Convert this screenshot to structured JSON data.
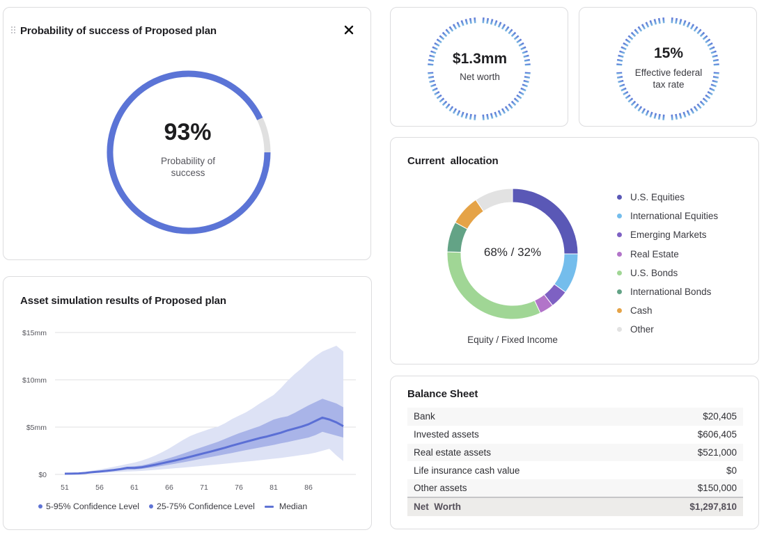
{
  "probability_card": {
    "title": "Probability of success of Proposed plan",
    "value": "93%",
    "caption": "Probability of success",
    "percent": 93,
    "color_fill": "#5b74d6",
    "color_track": "#e0e0e0",
    "drag_icon": "drag-handle-icon",
    "close_icon": "close-icon"
  },
  "stats": {
    "net_worth": {
      "value": "$1.3mm",
      "label": "Net worth"
    },
    "tax_rate": {
      "value": "15%",
      "label": "Effective federal tax rate"
    },
    "ring_colors": {
      "top": "#5b74d6",
      "bottom": "#7cbde3"
    }
  },
  "allocation": {
    "title": "Current  allocation",
    "center_text": "68% / 32%",
    "subtitle": "Equity / Fixed Income",
    "legend": [
      {
        "label": "U.S. Equities",
        "color": "#5a58b6"
      },
      {
        "label": "International Equities",
        "color": "#74bdec"
      },
      {
        "label": "Emerging Markets",
        "color": "#7e61c3"
      },
      {
        "label": "Real Estate",
        "color": "#b274c9"
      },
      {
        "label": "U.S. Bonds",
        "color": "#a0d695"
      },
      {
        "label": "International Bonds",
        "color": "#63a386"
      },
      {
        "label": "Cash",
        "color": "#e5a347"
      },
      {
        "label": "Other",
        "color": "#e2e2e2"
      }
    ]
  },
  "balance_sheet": {
    "title": "Balance Sheet",
    "rows": [
      {
        "label": "Bank",
        "amount": "$20,405"
      },
      {
        "label": "Invested assets",
        "amount": "$606,405"
      },
      {
        "label": "Real estate assets",
        "amount": "$521,000"
      },
      {
        "label": "Life insurance cash value",
        "amount": "$0"
      },
      {
        "label": "Other assets",
        "amount": "$150,000"
      }
    ],
    "total": {
      "label": "Net  Worth",
      "amount": "$1,297,810"
    }
  },
  "simulation": {
    "title": "Asset simulation results of Proposed plan",
    "legend": {
      "band_outer": "5-95% Confidence Level",
      "band_inner": "25-75% Confidence Level",
      "median": "Median"
    }
  },
  "chart_data": [
    {
      "type": "pie",
      "title": "Current  allocation",
      "center_label": "68% / 32%",
      "subtitle": "Equity / Fixed Income",
      "categories": [
        "U.S. Equities",
        "International Equities",
        "Emerging Markets",
        "Real Estate",
        "U.S. Bonds",
        "International Bonds",
        "Cash",
        "Other"
      ],
      "values": [
        25,
        10,
        4.5,
        3.5,
        32.5,
        7.5,
        7.5,
        9.5
      ],
      "colors": [
        "#5a58b6",
        "#74bdec",
        "#7e61c3",
        "#b274c9",
        "#a0d695",
        "#63a386",
        "#e5a347",
        "#e2e2e2"
      ],
      "legend": "right"
    },
    {
      "type": "area",
      "title": "Asset simulation results of Proposed plan",
      "xlabel": "",
      "ylabel": "",
      "x": [
        51,
        52,
        53,
        54,
        55,
        56,
        57,
        58,
        59,
        60,
        61,
        62,
        63,
        64,
        65,
        66,
        67,
        68,
        69,
        70,
        71,
        72,
        73,
        74,
        75,
        76,
        77,
        78,
        79,
        80,
        81,
        82,
        83,
        84,
        85,
        86,
        87,
        88,
        89,
        90,
        91
      ],
      "xticks": [
        51,
        56,
        61,
        66,
        71,
        76,
        81,
        86
      ],
      "xlim": [
        51,
        91.5
      ],
      "yticks": [
        0,
        5,
        10,
        15
      ],
      "ytick_labels": [
        "$0",
        "$5mm",
        "$10mm",
        "$15mm"
      ],
      "ylim": [
        0,
        15.5
      ],
      "grid": true,
      "legend": "bottom-left",
      "series": [
        {
          "name": "p95",
          "values": [
            0.08,
            0.12,
            0.18,
            0.28,
            0.4,
            0.52,
            0.65,
            0.8,
            0.95,
            1.1,
            1.25,
            1.45,
            1.7,
            2.0,
            2.35,
            2.75,
            3.2,
            3.65,
            4.05,
            4.35,
            4.6,
            4.85,
            5.05,
            5.4,
            5.85,
            6.2,
            6.55,
            7.0,
            7.5,
            7.95,
            8.4,
            9.1,
            9.9,
            10.6,
            11.2,
            11.9,
            12.5,
            13.0,
            13.3,
            13.6,
            13.0
          ]
        },
        {
          "name": "p75",
          "values": [
            0.08,
            0.1,
            0.14,
            0.22,
            0.3,
            0.38,
            0.46,
            0.55,
            0.66,
            0.8,
            0.86,
            0.95,
            1.1,
            1.3,
            1.5,
            1.72,
            1.95,
            2.2,
            2.45,
            2.7,
            2.95,
            3.2,
            3.45,
            3.75,
            4.05,
            4.35,
            4.6,
            4.85,
            5.1,
            5.45,
            5.8,
            6.0,
            6.15,
            6.5,
            6.9,
            7.3,
            7.65,
            8.0,
            7.75,
            7.5,
            7.1
          ]
        },
        {
          "name": "median",
          "values": [
            0.07,
            0.08,
            0.1,
            0.16,
            0.24,
            0.3,
            0.38,
            0.46,
            0.56,
            0.7,
            0.68,
            0.75,
            0.88,
            1.02,
            1.18,
            1.34,
            1.5,
            1.68,
            1.86,
            2.05,
            2.24,
            2.42,
            2.62,
            2.82,
            3.04,
            3.24,
            3.44,
            3.64,
            3.84,
            4.0,
            4.2,
            4.4,
            4.65,
            4.85,
            5.05,
            5.3,
            5.65,
            6.0,
            5.8,
            5.5,
            5.1
          ]
        },
        {
          "name": "p25",
          "values": [
            0.06,
            0.07,
            0.08,
            0.12,
            0.18,
            0.22,
            0.28,
            0.34,
            0.42,
            0.5,
            0.52,
            0.58,
            0.68,
            0.78,
            0.9,
            1.02,
            1.15,
            1.28,
            1.42,
            1.56,
            1.7,
            1.84,
            1.98,
            2.12,
            2.26,
            2.42,
            2.56,
            2.7,
            2.84,
            2.98,
            3.12,
            3.28,
            3.42,
            3.58,
            3.74,
            3.9,
            4.15,
            4.5,
            4.3,
            4.1,
            3.9
          ]
        },
        {
          "name": "p5",
          "values": [
            0.05,
            0.06,
            0.07,
            0.09,
            0.12,
            0.15,
            0.18,
            0.22,
            0.26,
            0.3,
            0.33,
            0.37,
            0.42,
            0.48,
            0.54,
            0.6,
            0.66,
            0.72,
            0.78,
            0.85,
            0.92,
            0.99,
            1.06,
            1.13,
            1.2,
            1.28,
            1.35,
            1.42,
            1.5,
            1.58,
            1.66,
            1.74,
            1.84,
            1.94,
            2.05,
            2.15,
            2.3,
            2.5,
            2.7,
            2.0,
            1.4
          ]
        }
      ],
      "colors": {
        "outer_band": "#dde2f5",
        "inner_band": "#a9b4e8",
        "median": "#5b6fd5"
      }
    }
  ]
}
